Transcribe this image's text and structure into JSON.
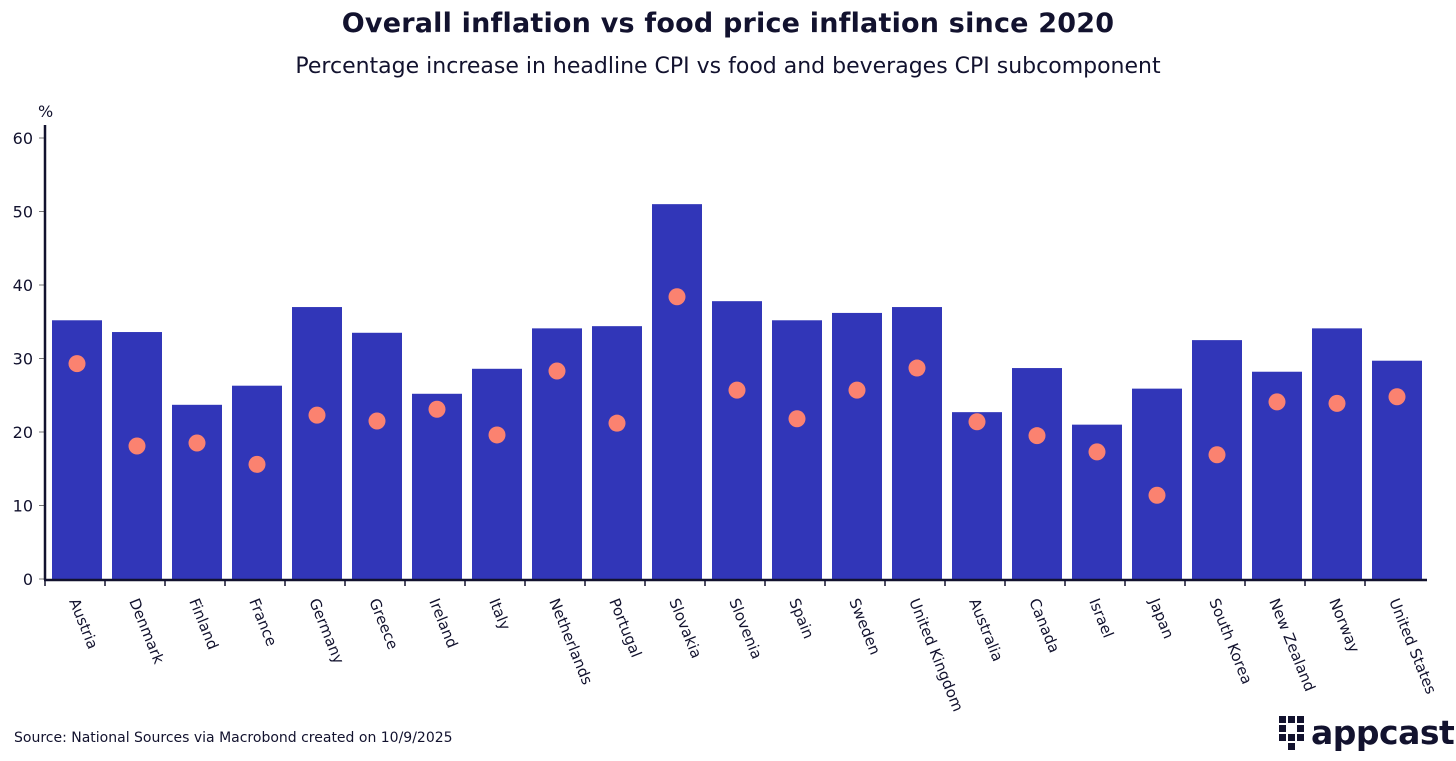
{
  "chart_data": {
    "type": "bar",
    "title": "Overall inflation vs food price inflation since 2020",
    "subtitle": "Percentage increase in headline CPI vs food and beverages CPI subcomponent",
    "ylabel": "%",
    "xlabel": "",
    "ylim": [
      0,
      60
    ],
    "yticks": [
      0,
      10,
      20,
      30,
      40,
      50,
      60
    ],
    "categories": [
      "Austria",
      "Denmark",
      "Finland",
      "France",
      "Germany",
      "Greece",
      "Ireland",
      "Italy",
      "Netherlands",
      "Portugal",
      "Slovakia",
      "Slovenia",
      "Spain",
      "Sweden",
      "United Kingdom",
      "Australia",
      "Canada",
      "Israel",
      "Japan",
      "South Korea",
      "New Zealand",
      "Norway",
      "United States"
    ],
    "series": [
      {
        "name": "Headline CPI",
        "type": "bar",
        "color": "#3136b8",
        "values": [
          35.2,
          33.6,
          23.7,
          26.3,
          37.0,
          33.5,
          25.2,
          28.6,
          34.1,
          34.4,
          51.0,
          37.8,
          35.2,
          36.2,
          37.0,
          22.7,
          28.7,
          21.0,
          25.9,
          32.5,
          28.2,
          34.1,
          29.7
        ]
      },
      {
        "name": "Food and beverages CPI",
        "type": "scatter",
        "color": "#fb8270",
        "values": [
          29.3,
          18.1,
          18.5,
          15.6,
          22.3,
          21.5,
          23.1,
          19.6,
          28.3,
          21.2,
          38.4,
          25.7,
          21.8,
          25.7,
          28.7,
          21.4,
          19.5,
          17.3,
          11.4,
          16.9,
          24.1,
          23.9,
          24.8
        ]
      }
    ],
    "grid": false,
    "legend": "none"
  },
  "footer": {
    "source": "Source: National Sources via Macrobond created on 10/9/2025",
    "logo_text": "appcast"
  }
}
